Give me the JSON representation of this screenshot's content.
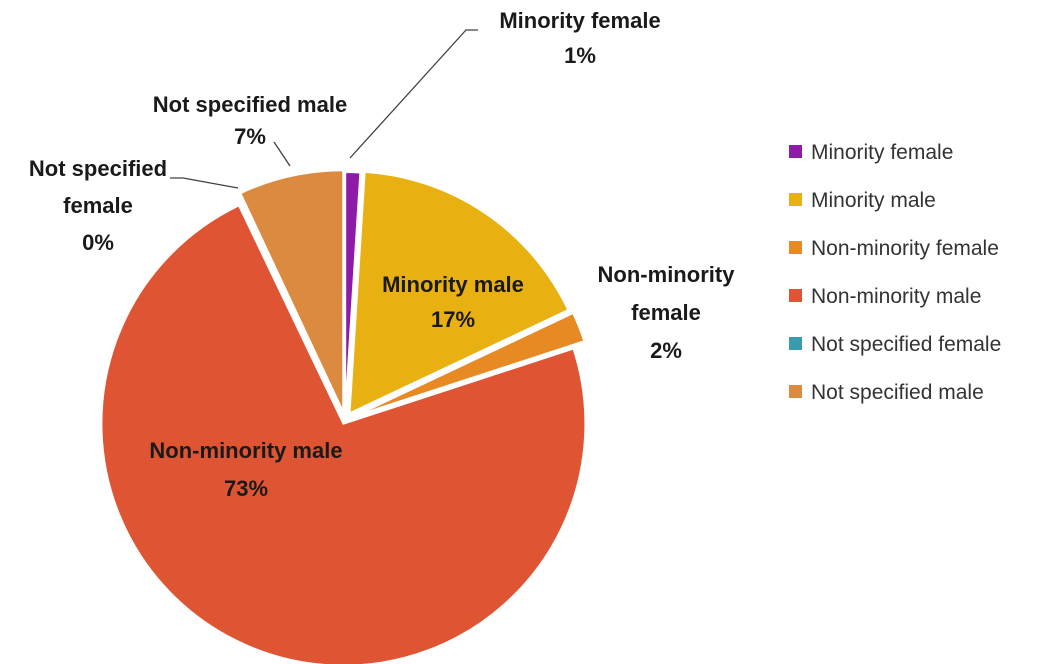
{
  "chart_data": {
    "type": "pie",
    "title": "",
    "legend_position": "right",
    "slices": [
      {
        "name": "Minority female",
        "value": 1,
        "label": "1%",
        "color": "#8e1aa8"
      },
      {
        "name": "Minority male",
        "value": 17,
        "label": "17%",
        "color": "#e8b010"
      },
      {
        "name": "Non-minority female",
        "value": 2,
        "label": "2%",
        "color": "#e88a24"
      },
      {
        "name": "Non-minority male",
        "value": 73,
        "label": "73%",
        "color": "#df5432"
      },
      {
        "name": "Not specified female",
        "value": 0,
        "label": "0%",
        "color": "#3a9bb0"
      },
      {
        "name": "Not specified male",
        "value": 7,
        "label": "7%",
        "color": "#dc8a40"
      }
    ]
  }
}
